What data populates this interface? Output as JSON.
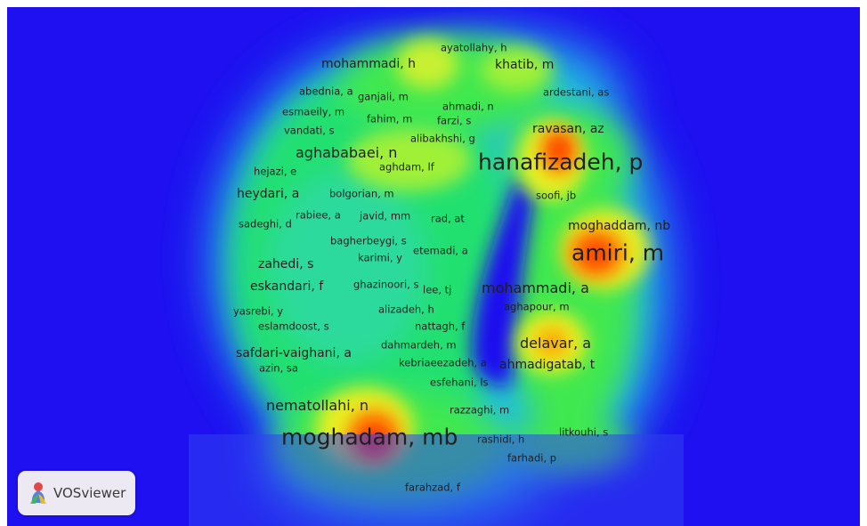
{
  "labels": [
    {
      "text": "ayatollahy, h",
      "size": 1
    },
    {
      "text": "mohammadi, h",
      "size": 2
    },
    {
      "text": "khatib, m",
      "size": 2
    },
    {
      "text": "abednia, a",
      "size": 1
    },
    {
      "text": "ganjali, m",
      "size": 1
    },
    {
      "text": "ardestani, as",
      "size": 1
    },
    {
      "text": "ahmadi, n",
      "size": 1
    },
    {
      "text": "esmaeily, m",
      "size": 1
    },
    {
      "text": "fahim, m",
      "size": 1
    },
    {
      "text": "farzi, s",
      "size": 1
    },
    {
      "text": "vandati, s",
      "size": 1
    },
    {
      "text": "ravasan, az",
      "size": 2
    },
    {
      "text": "alibakhshi, g",
      "size": 1
    },
    {
      "text": "aghababaei, n",
      "size": 3
    },
    {
      "text": "hanafizadeh, p",
      "size": 4
    },
    {
      "text": "hejazi, e",
      "size": 1
    },
    {
      "text": "aghdam, lf",
      "size": 1
    },
    {
      "text": "heydari, a",
      "size": 2
    },
    {
      "text": "bolgorian, m",
      "size": 1
    },
    {
      "text": "soofi, jb",
      "size": 1
    },
    {
      "text": "sadeghi, d",
      "size": 1
    },
    {
      "text": "rabiee, a",
      "size": 1
    },
    {
      "text": "javid, mm",
      "size": 1
    },
    {
      "text": "rad, at",
      "size": 1
    },
    {
      "text": "moghaddam, nb",
      "size": 2
    },
    {
      "text": "bagherbeygi, s",
      "size": 1
    },
    {
      "text": "etemadi, a",
      "size": 1
    },
    {
      "text": "amiri, m",
      "size": 4
    },
    {
      "text": "karimi, y",
      "size": 1
    },
    {
      "text": "zahedi, s",
      "size": 2
    },
    {
      "text": "eskandari, f",
      "size": 2
    },
    {
      "text": "ghazinoori, s",
      "size": 1
    },
    {
      "text": "lee, tj",
      "size": 1
    },
    {
      "text": "mohammadi, a",
      "size": 3
    },
    {
      "text": "aghapour, m",
      "size": 1
    },
    {
      "text": "yasrebi, y",
      "size": 1
    },
    {
      "text": "alizadeh, h",
      "size": 1
    },
    {
      "text": "eslamdoost, s",
      "size": 1
    },
    {
      "text": "nattagh, f",
      "size": 1
    },
    {
      "text": "delavar, a",
      "size": 3
    },
    {
      "text": "dahmardeh, m",
      "size": 1
    },
    {
      "text": "safdari-vaighani, a",
      "size": 2
    },
    {
      "text": "kebriaeezadeh, a",
      "size": 1
    },
    {
      "text": "ahmadigatab, t",
      "size": 2
    },
    {
      "text": "azin, sa",
      "size": 1
    },
    {
      "text": "esfehani, ls",
      "size": 1
    },
    {
      "text": "nematollahi, n",
      "size": 3
    },
    {
      "text": "razzaghi, m",
      "size": 1
    },
    {
      "text": "litkouhi, s",
      "size": 1
    },
    {
      "text": "moghadam, mb",
      "size": 4
    },
    {
      "text": "rashidi, h",
      "size": 1
    },
    {
      "text": "farhadi, p",
      "size": 1
    },
    {
      "text": "farahzad, f",
      "size": 1
    }
  ],
  "badge": {
    "text": "VOSviewer",
    "icon": "vosviewer-logo-icon"
  },
  "colors": {
    "background": "#1e10f0",
    "frame": "#ffffff",
    "label": "#1f1f1f",
    "hot": "#ff2000"
  }
}
